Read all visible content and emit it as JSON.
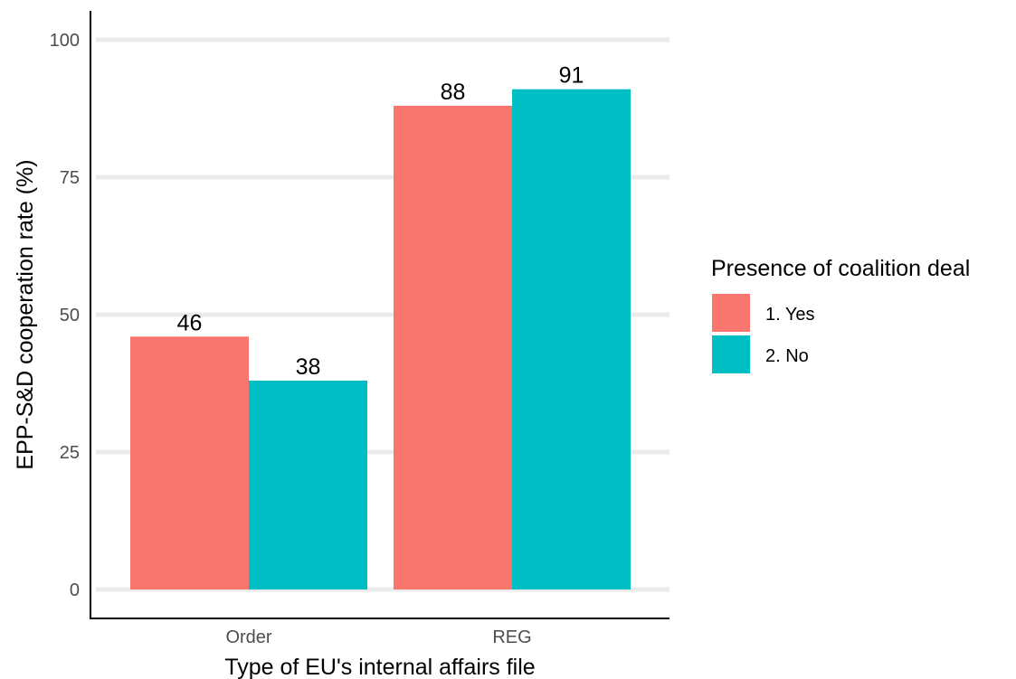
{
  "chart_data": {
    "type": "bar",
    "categories": [
      "Order",
      "REG"
    ],
    "series": [
      {
        "name": "1. Yes",
        "values": [
          46,
          88
        ],
        "color": "#F8766D"
      },
      {
        "name": "2. No",
        "values": [
          38,
          91
        ],
        "color": "#00BFC4"
      }
    ],
    "data_labels": [
      [
        "46",
        "88"
      ],
      [
        "38",
        "91"
      ]
    ],
    "xlabel": "Type of EU's internal affairs file",
    "ylabel": "EPP-S&D cooperation rate (%)",
    "ylim": [
      0,
      100
    ],
    "yticks": [
      0,
      25,
      50,
      75,
      100
    ],
    "grid": "horizontal",
    "legend": {
      "title": "Presence of coalition deal",
      "placement": "right"
    }
  }
}
